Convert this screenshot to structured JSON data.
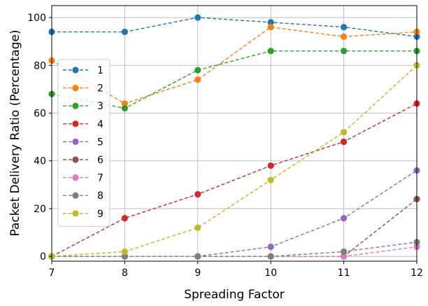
{
  "chart_data": {
    "type": "line",
    "title": "",
    "xlabel": "Spreading Factor",
    "ylabel": "Packet Delivery Ratio (Percentage)",
    "x": [
      7,
      8,
      9,
      10,
      11,
      12
    ],
    "xlim": [
      7,
      12
    ],
    "ylim": [
      -2,
      105
    ],
    "xticks": [
      "7",
      "8",
      "9",
      "10",
      "11",
      "12"
    ],
    "yticks": [
      "0",
      "20",
      "40",
      "60",
      "80",
      "100"
    ],
    "grid": true,
    "legend_position": "center-left",
    "series": [
      {
        "name": "1",
        "color": "#1f77b4",
        "values": [
          94,
          94,
          100,
          98,
          96,
          92
        ]
      },
      {
        "name": "2",
        "color": "#ff7f0e",
        "values": [
          82,
          64,
          74,
          96,
          92,
          94
        ]
      },
      {
        "name": "3",
        "color": "#2ca02c",
        "values": [
          68,
          62,
          78,
          86,
          86,
          86
        ]
      },
      {
        "name": "4",
        "color": "#d62728",
        "values": [
          0,
          16,
          26,
          38,
          48,
          64
        ]
      },
      {
        "name": "5",
        "color": "#9467bd",
        "values": [
          0,
          0,
          0,
          4,
          16,
          36
        ]
      },
      {
        "name": "6",
        "color": "#8c564b",
        "values": [
          0,
          0,
          0,
          0,
          0,
          24
        ]
      },
      {
        "name": "7",
        "color": "#e377c2",
        "values": [
          0,
          0,
          0,
          0,
          0,
          4
        ]
      },
      {
        "name": "8",
        "color": "#7f7f7f",
        "values": [
          0,
          0,
          0,
          0,
          2,
          6
        ]
      },
      {
        "name": "9",
        "color": "#bcbd22",
        "values": [
          0,
          2,
          12,
          32,
          52,
          80
        ]
      }
    ]
  }
}
